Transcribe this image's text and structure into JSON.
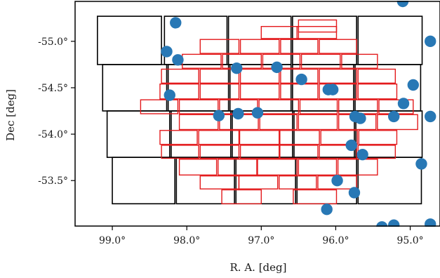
{
  "chart_data": {
    "type": "scatter",
    "title": "",
    "xlabel": "R. A. [deg]",
    "ylabel": "Dec [deg]",
    "x_inverted": true,
    "xlim": [
      99.5,
      94.6
    ],
    "ylim": [
      -55.43,
      -53.01
    ],
    "x_ticks": [
      {
        "value": 99.0,
        "label": "99.0°"
      },
      {
        "value": 98.0,
        "label": "98.0°"
      },
      {
        "value": 97.0,
        "label": "97.0°"
      },
      {
        "value": 96.0,
        "label": "96.0°"
      },
      {
        "value": 95.0,
        "label": "95.0°"
      }
    ],
    "y_ticks": [
      {
        "value": -53.5,
        "label": "-53.5°"
      },
      {
        "value": -54.0,
        "label": "-54.0°"
      },
      {
        "value": -54.5,
        "label": "-54.5°"
      },
      {
        "value": -55.0,
        "label": "-55.0°"
      }
    ],
    "grid": false,
    "colors": {
      "points": "#2878b5",
      "large_fields": "#000000",
      "small_fields": "#e31a1c"
    },
    "points": [
      [
        96.12,
        -53.19
      ],
      [
        95.75,
        -53.37
      ],
      [
        95.98,
        -53.5
      ],
      [
        95.38,
        -53.0
      ],
      [
        95.22,
        -53.02
      ],
      [
        94.73,
        -53.03
      ],
      [
        94.85,
        -53.68
      ],
      [
        95.64,
        -53.78
      ],
      [
        95.79,
        -53.88
      ],
      [
        95.74,
        -54.19
      ],
      [
        95.67,
        -54.17
      ],
      [
        95.22,
        -54.19
      ],
      [
        94.73,
        -54.19
      ],
      [
        95.09,
        -54.33
      ],
      [
        94.96,
        -54.53
      ],
      [
        96.04,
        -54.48
      ],
      [
        96.1,
        -54.48
      ],
      [
        96.46,
        -54.59
      ],
      [
        96.79,
        -54.72
      ],
      [
        97.33,
        -54.71
      ],
      [
        97.31,
        -54.22
      ],
      [
        97.05,
        -54.23
      ],
      [
        97.57,
        -54.2
      ],
      [
        98.23,
        -54.42
      ],
      [
        98.12,
        -54.8
      ],
      [
        98.27,
        -54.89
      ],
      [
        98.15,
        -55.2
      ],
      [
        94.73,
        -55.0
      ],
      [
        95.1,
        -55.43
      ]
    ],
    "large_fields": [
      {
        "rows": [
          [
            -53.25,
            -53.75
          ],
          [
            -53.75,
            -54.25
          ],
          [
            -54.25,
            -54.75
          ],
          [
            -54.75,
            -55.27
          ]
        ],
        "row_x": [
          [
            [
              99.0,
              98.16
            ],
            [
              98.14,
              97.36
            ],
            [
              97.34,
              96.54
            ],
            [
              96.52,
              95.72
            ],
            [
              95.7,
              94.85
            ]
          ],
          [
            [
              99.07,
              98.23
            ],
            [
              98.21,
              97.41
            ],
            [
              97.39,
              96.58
            ],
            [
              96.56,
              95.75
            ],
            [
              95.73,
              94.84
            ]
          ],
          [
            [
              99.13,
              98.27
            ],
            [
              98.25,
              97.44
            ],
            [
              97.42,
              96.6
            ],
            [
              96.58,
              95.76
            ],
            [
              95.74,
              94.86
            ]
          ],
          [
            [
              99.2,
              98.34
            ],
            [
              98.3,
              97.46
            ],
            [
              97.44,
              96.6
            ],
            [
              96.58,
              95.72
            ],
            [
              95.7,
              94.84
            ]
          ]
        ]
      }
    ],
    "small_fields": [
      [
        97.53,
        97.0,
        -53.25,
        -53.4
      ],
      [
        96.57,
        95.99,
        -53.25,
        -53.4
      ],
      [
        97.82,
        97.3,
        -53.41,
        -53.55
      ],
      [
        97.3,
        96.78,
        -53.41,
        -53.55
      ],
      [
        96.76,
        96.26,
        -53.41,
        -53.55
      ],
      [
        96.24,
        95.72,
        -53.41,
        -53.55
      ],
      [
        98.1,
        97.6,
        -53.56,
        -53.73
      ],
      [
        97.58,
        97.06,
        -53.56,
        -53.73
      ],
      [
        97.05,
        96.52,
        -53.56,
        -53.73
      ],
      [
        96.5,
        95.99,
        -53.56,
        -53.73
      ],
      [
        95.97,
        95.44,
        -53.56,
        -53.73
      ],
      [
        98.34,
        97.84,
        -53.74,
        -53.88
      ],
      [
        97.82,
        97.3,
        -53.74,
        -53.88
      ],
      [
        97.28,
        96.76,
        -53.74,
        -53.88
      ],
      [
        96.75,
        96.24,
        -53.74,
        -53.88
      ],
      [
        96.22,
        95.72,
        -53.74,
        -53.88
      ],
      [
        95.7,
        95.2,
        -53.74,
        -53.88
      ],
      [
        98.36,
        97.86,
        -53.89,
        -54.04
      ],
      [
        97.84,
        97.3,
        -53.89,
        -54.04
      ],
      [
        97.29,
        96.76,
        -53.89,
        -54.04
      ],
      [
        96.75,
        96.22,
        -53.89,
        -54.04
      ],
      [
        96.2,
        95.71,
        -53.89,
        -54.04
      ],
      [
        95.69,
        95.18,
        -53.89,
        -54.04
      ],
      [
        98.1,
        97.58,
        -54.05,
        -54.21
      ],
      [
        97.56,
        97.04,
        -54.05,
        -54.21
      ],
      [
        97.02,
        96.52,
        -54.05,
        -54.21
      ],
      [
        96.5,
        95.98,
        -54.05,
        -54.21
      ],
      [
        95.96,
        95.46,
        -54.05,
        -54.21
      ],
      [
        95.44,
        94.9,
        -54.05,
        -54.21
      ],
      [
        98.62,
        98.12,
        -54.22,
        -54.37
      ],
      [
        98.1,
        97.58,
        -54.22,
        -54.37
      ],
      [
        97.56,
        97.05,
        -54.22,
        -54.37
      ],
      [
        97.03,
        96.5,
        -54.22,
        -54.37
      ],
      [
        96.48,
        95.98,
        -54.22,
        -54.37
      ],
      [
        95.96,
        95.44,
        -54.22,
        -54.37
      ],
      [
        95.42,
        94.96,
        -54.22,
        -54.37
      ],
      [
        98.36,
        97.84,
        -54.38,
        -54.54
      ],
      [
        97.82,
        97.3,
        -54.38,
        -54.54
      ],
      [
        97.28,
        96.76,
        -54.38,
        -54.54
      ],
      [
        96.74,
        96.24,
        -54.38,
        -54.54
      ],
      [
        96.22,
        95.72,
        -54.38,
        -54.54
      ],
      [
        95.7,
        95.18,
        -54.38,
        -54.54
      ],
      [
        98.34,
        97.84,
        -54.55,
        -54.7
      ],
      [
        97.82,
        97.3,
        -54.55,
        -54.7
      ],
      [
        97.28,
        96.76,
        -54.55,
        -54.7
      ],
      [
        96.74,
        96.24,
        -54.55,
        -54.7
      ],
      [
        96.22,
        95.72,
        -54.55,
        -54.7
      ],
      [
        95.7,
        95.2,
        -54.55,
        -54.7
      ],
      [
        98.06,
        97.54,
        -54.71,
        -54.86
      ],
      [
        97.52,
        97.0,
        -54.71,
        -54.86
      ],
      [
        96.98,
        96.48,
        -54.71,
        -54.86
      ],
      [
        96.46,
        95.94,
        -54.71,
        -54.86
      ],
      [
        95.92,
        95.44,
        -54.71,
        -54.86
      ],
      [
        97.82,
        97.3,
        -54.87,
        -55.02
      ],
      [
        97.28,
        96.76,
        -54.87,
        -55.02
      ],
      [
        96.74,
        96.24,
        -54.87,
        -55.02
      ],
      [
        96.22,
        95.72,
        -54.87,
        -55.02
      ],
      [
        97.0,
        96.5,
        -55.03,
        -55.16
      ],
      [
        96.52,
        95.99,
        -55.03,
        -55.16
      ],
      [
        96.5,
        95.99,
        -55.1,
        -55.23
      ]
    ]
  }
}
